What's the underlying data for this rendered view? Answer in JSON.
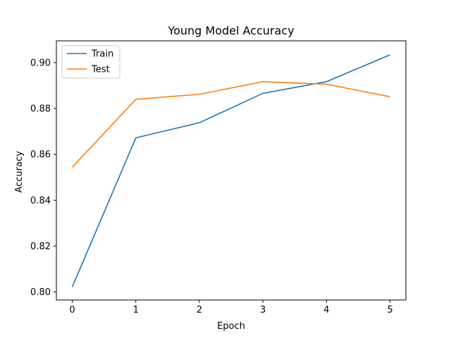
{
  "chart_data": {
    "type": "line",
    "title": "Young Model Accuracy",
    "xlabel": "Epoch",
    "ylabel": "Accuracy",
    "x": [
      0,
      1,
      2,
      3,
      4,
      5
    ],
    "xlim": [
      -0.25,
      5.25
    ],
    "ylim": [
      0.7965,
      0.9095
    ],
    "x_ticks": [
      "0",
      "1",
      "2",
      "3",
      "4",
      "5"
    ],
    "y_ticks": [
      "0.80",
      "0.82",
      "0.84",
      "0.86",
      "0.88",
      "0.90"
    ],
    "legend_position": "upper-left",
    "grid": false,
    "series": [
      {
        "name": "Train",
        "color": "#1f77b4",
        "values": [
          0.8022,
          0.8672,
          0.8738,
          0.8866,
          0.8917,
          0.9034
        ]
      },
      {
        "name": "Test",
        "color": "#ff7f0e",
        "values": [
          0.8544,
          0.884,
          0.8862,
          0.8917,
          0.8906,
          0.8851
        ]
      }
    ]
  }
}
